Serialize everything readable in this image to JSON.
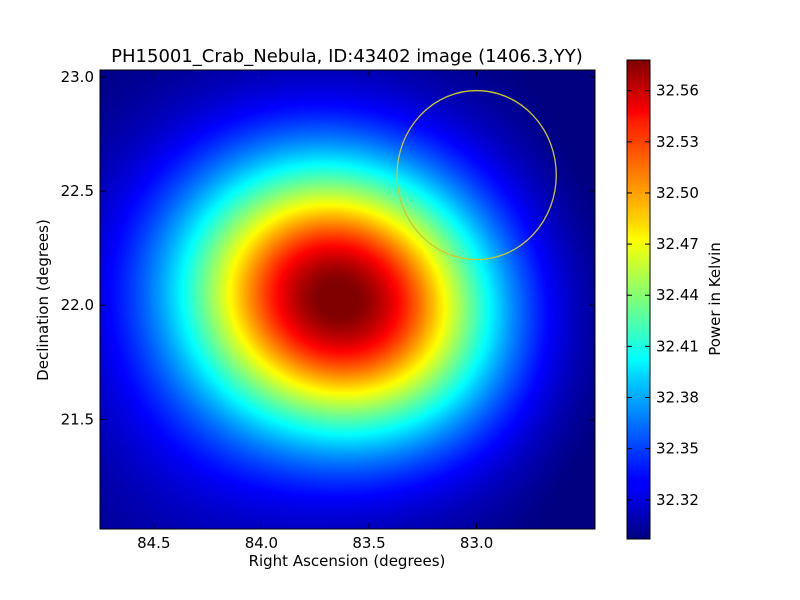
{
  "chart_data": {
    "type": "heatmap",
    "title": "PH15001_Crab_Nebula, ID:43402 image (1406.3,YY)",
    "xlabel": "Right Ascension (degrees)",
    "ylabel": "Declination (degrees)",
    "colorbar_label": "Power in Kelvin",
    "colormap": "jet",
    "xlim": [
      84.75,
      82.45
    ],
    "ylim": [
      21.02,
      23.03
    ],
    "x_ticks": [
      84.5,
      84.0,
      83.5,
      83.0
    ],
    "x_tick_labels": [
      "84.5",
      "84.0",
      "83.5",
      "83.0"
    ],
    "y_ticks": [
      21.5,
      22.0,
      22.5,
      23.0
    ],
    "y_tick_labels": [
      "21.5",
      "22.0",
      "22.5",
      "23.0"
    ],
    "clim": [
      32.297,
      32.578
    ],
    "colorbar_ticks": [
      32.32,
      32.35,
      32.38,
      32.41,
      32.44,
      32.47,
      32.5,
      32.53,
      32.56
    ],
    "colorbar_tick_labels": [
      "32.32",
      "32.35",
      "32.38",
      "32.41",
      "32.44",
      "32.47",
      "32.50",
      "32.53",
      "32.56"
    ],
    "peak": {
      "ra": 83.63,
      "dec": 22.03,
      "value": 32.578
    },
    "background_value": 32.297,
    "source_width_deg": {
      "ra": 0.5,
      "dec": 0.41
    },
    "source_tilt_deg": -14,
    "circle_marker": {
      "ra": 83.0,
      "dec": 22.57,
      "radius_deg": 0.37,
      "color": "#c8c832"
    }
  }
}
